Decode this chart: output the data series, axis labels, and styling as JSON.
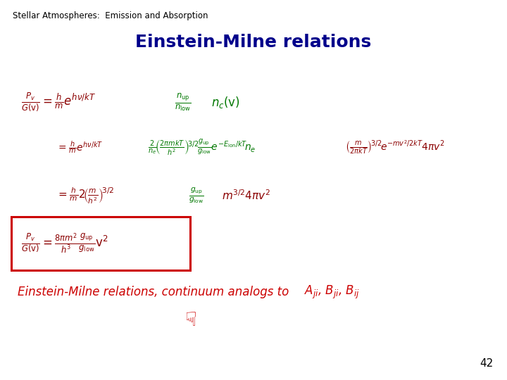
{
  "background_color": "#ffffff",
  "header_text": "Stellar Atmospheres:  Emission and Absorption",
  "header_fontsize": 8.5,
  "header_color": "#000000",
  "title_text": "Einstein-Milne relations",
  "title_fontsize": 18,
  "title_color": "#00008B",
  "title_bold": true,
  "dark_red": "#8B0000",
  "green": "#007700",
  "red_box": "#CC0000",
  "footer_color": "#CC0000",
  "footer_fontsize": 12,
  "page_number": "42",
  "page_number_fontsize": 11,
  "page_number_color": "#000000"
}
